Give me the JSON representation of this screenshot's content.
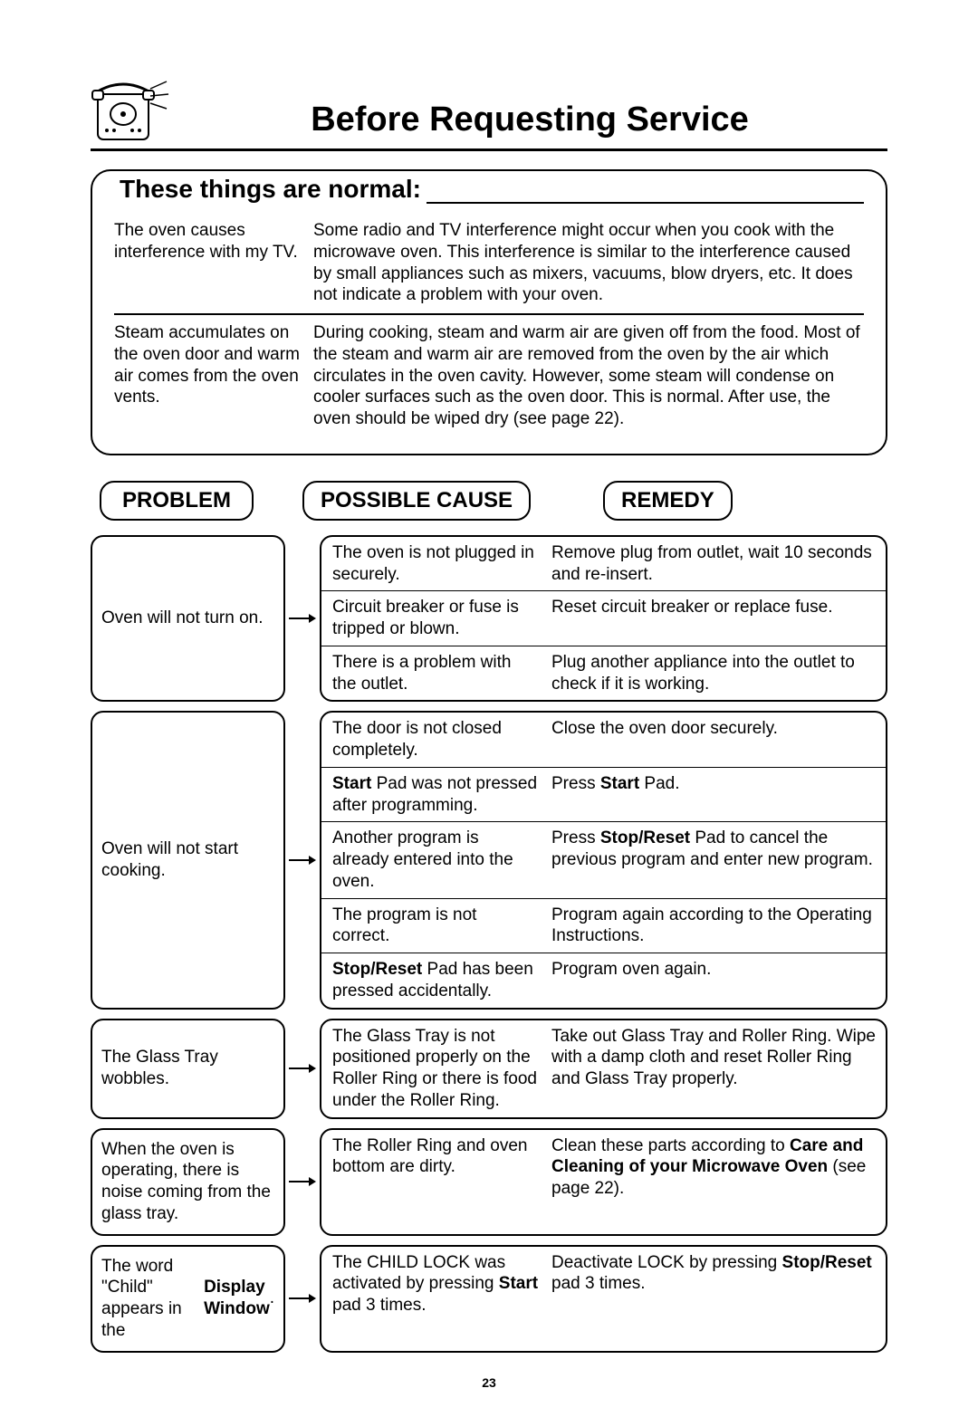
{
  "page_title": "Before Requesting Service",
  "subtitle": "These things are normal:",
  "normal": [
    {
      "left": "The oven causes interference with my TV.",
      "right": "Some radio and TV interference might occur when you cook with the microwave oven. This interference is similar to the interference caused by small appliances such as mixers, vacuums, blow dryers, etc. It does not indicate a problem with your oven."
    },
    {
      "left": "Steam accumulates on the oven door and warm air comes from the oven vents.",
      "right": "During cooking, steam and warm air are given off from the food. Most of the steam and warm air are removed from the oven by the air which circulates in the oven cavity. However, some steam will condense on cooler surfaces such as the oven door. This is normal. After use, the oven should be wiped dry (see page 22)."
    }
  ],
  "headers": {
    "problem": "PROBLEM",
    "cause": "POSSIBLE CAUSE",
    "remedy": "REMEDY"
  },
  "troubles": [
    {
      "problem": "Oven will not turn on.",
      "lines": [
        {
          "cause": "The oven is not plugged in securely.",
          "remedy": "Remove plug from outlet, wait 10 seconds and re-insert."
        },
        {
          "cause": "Circuit breaker or fuse is tripped or blown.",
          "remedy": "Reset circuit breaker or replace fuse."
        },
        {
          "cause": "There is a problem with the outlet.",
          "remedy": "Plug another appliance into the outlet to check if it is working."
        }
      ]
    },
    {
      "problem": "Oven will not start cooking.",
      "lines": [
        {
          "cause": "The door is not closed completely.",
          "remedy": "Close the oven door securely."
        },
        {
          "cause_html": "<span class='b'>Start</span> Pad was not pressed after programming.",
          "remedy_html": "Press <span class='b'>Start</span> Pad."
        },
        {
          "cause": "Another program is already entered into the oven.",
          "remedy_html": "Press <span class='b'>Stop/Reset</span> Pad to cancel the previous program and enter new program."
        },
        {
          "cause": "The program is not correct.",
          "remedy": "Program again according to the Operating Instructions."
        },
        {
          "cause_html": "<span class='b'>Stop/Reset</span> Pad has been pressed accidentally.",
          "remedy": "Program oven again."
        }
      ]
    },
    {
      "problem": "The Glass Tray wobbles.",
      "lines": [
        {
          "cause": "The Glass Tray is not positioned properly on the Roller Ring or there is food under the Roller Ring.",
          "remedy": "Take out Glass Tray and Roller Ring. Wipe with a damp cloth and reset Roller Ring and Glass Tray properly."
        }
      ]
    },
    {
      "problem": "When the oven is operating, there is noise coming from the glass tray.",
      "lines": [
        {
          "cause": "The Roller Ring and oven bottom are dirty.",
          "remedy_html": "Clean these parts according to <span class='b'>Care and Cleaning of your Microwave Oven</span> (see page 22)."
        }
      ]
    },
    {
      "problem_html": "The word \"Child\" appears in the <span class='b'>Display Window</span>.",
      "lines": [
        {
          "cause_html": "The CHILD LOCK was activated by pressing <span class='b'>Start</span> pad 3 times.",
          "remedy_html": "Deactivate LOCK by pressing <span class='b'>Stop/Reset</span> pad 3 times."
        }
      ]
    }
  ],
  "page_number": "23",
  "colors": {
    "text": "#000000",
    "background": "#ffffff",
    "rule": "#000000"
  }
}
